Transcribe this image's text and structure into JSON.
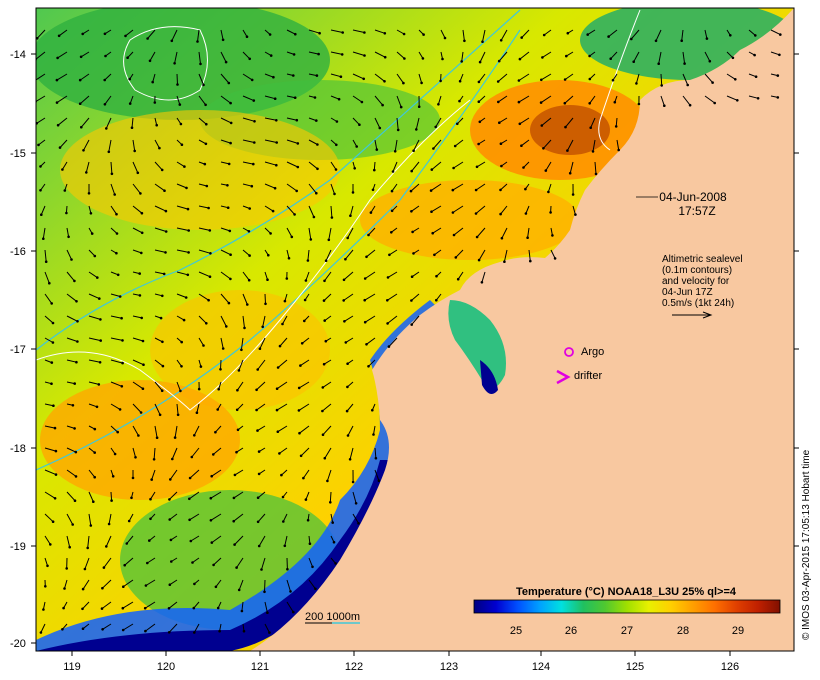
{
  "map": {
    "lon_ticks": [
      "119",
      "120",
      "121",
      "122",
      "123",
      "124",
      "125",
      "126"
    ],
    "lat_ticks": [
      "-14",
      "-15",
      "-16",
      "-17",
      "-18",
      "-19",
      "-20"
    ],
    "date_line": "04-Jun-2008",
    "time_line": "17:57Z",
    "legend_lines": [
      "Altimetric sealevel",
      "(0.1m contours)",
      "and velocity for",
      "04-Jun 17Z",
      "0.5m/s (1kt 24h)"
    ],
    "argo_label": "Argo",
    "drifter_label": "drifter",
    "depth_label": "200  1000m",
    "credit": "© IMOS 03-Apr-2015 17:05:13 Hobart time"
  },
  "colorbar": {
    "title": "Temperature (°C) NOAA18_L3U 25% ql>=4",
    "ticks": [
      "25",
      "26",
      "27",
      "28",
      "29"
    ],
    "colors": [
      "#000080",
      "#0000d0",
      "#0050ff",
      "#00a0ff",
      "#00e0e0",
      "#20c060",
      "#50c830",
      "#a0e000",
      "#e8f000",
      "#ffd000",
      "#ffa000",
      "#ff7000",
      "#e04000",
      "#c02000",
      "#801000"
    ]
  },
  "colors": {
    "land": "#f8c8a0",
    "shelf_contour": "#40c8d8",
    "sealevel_contour": "#ffffff",
    "argo": "#e000e0",
    "drifter": "#e000e0"
  }
}
